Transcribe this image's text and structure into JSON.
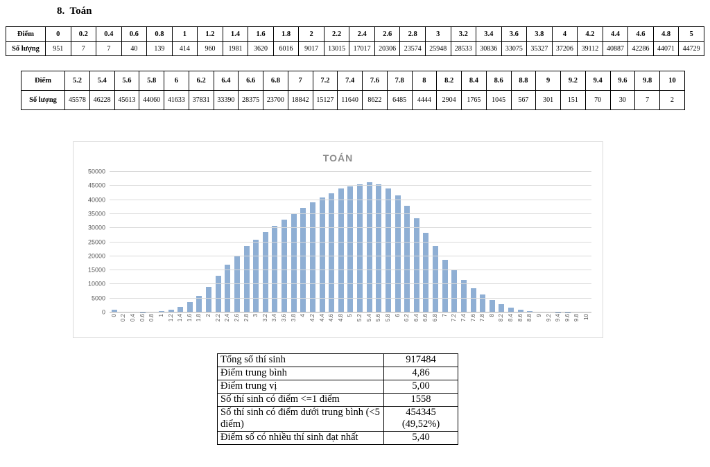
{
  "page": {
    "heading": "8.  Toán"
  },
  "tables": {
    "score_row_label": "Điểm",
    "count_row_label": "Số lượng"
  },
  "chart_data": {
    "type": "bar",
    "title": "TOÁN",
    "x": [
      "0",
      "0.2",
      "0.4",
      "0.6",
      "0.8",
      "1",
      "1.2",
      "1.4",
      "1.6",
      "1.8",
      "2",
      "2.2",
      "2.4",
      "2.6",
      "2.8",
      "3",
      "3.2",
      "3.4",
      "3.6",
      "3.8",
      "4",
      "4.2",
      "4.4",
      "4.6",
      "4.8",
      "5",
      "5.2",
      "5.4",
      "5.6",
      "5.8",
      "6",
      "6.2",
      "6.4",
      "6.6",
      "6.8",
      "7",
      "7.2",
      "7.4",
      "7.6",
      "7.8",
      "8",
      "8.2",
      "8.4",
      "8.6",
      "8.8",
      "9",
      "9.2",
      "9.4",
      "9.6",
      "9.8",
      "10"
    ],
    "values": [
      951,
      7,
      7,
      40,
      139,
      414,
      960,
      1981,
      3620,
      6016,
      9017,
      13015,
      17017,
      20306,
      23574,
      25948,
      28533,
      30836,
      33075,
      35327,
      37206,
      39112,
      40887,
      42286,
      44071,
      44729,
      45578,
      46228,
      45613,
      44060,
      41633,
      37831,
      33390,
      28375,
      23700,
      18842,
      15127,
      11640,
      8622,
      6485,
      4444,
      2904,
      1765,
      1045,
      567,
      301,
      151,
      70,
      30,
      7,
      2
    ],
    "xlabel": "",
    "ylabel": "",
    "ylim": [
      0,
      50000
    ],
    "ytick_step": 5000,
    "grid": true,
    "legend": false,
    "bar_color": "#8fafd4"
  },
  "summary": {
    "rows": [
      {
        "label": "Tổng số thí sinh",
        "value": "917484"
      },
      {
        "label": "Điểm trung bình",
        "value": "4,86"
      },
      {
        "label": "Điểm trung vị",
        "value": "5,00"
      },
      {
        "label": "Số thí sinh có điểm <=1 điểm",
        "value": "1558"
      },
      {
        "label": "Số thí sinh có điểm dưới trung bình (<5 điểm)",
        "value": "454345\n(49,52%)"
      },
      {
        "label": "Điểm số có nhiều thí sinh đạt nhất",
        "value": "5,40"
      }
    ]
  }
}
